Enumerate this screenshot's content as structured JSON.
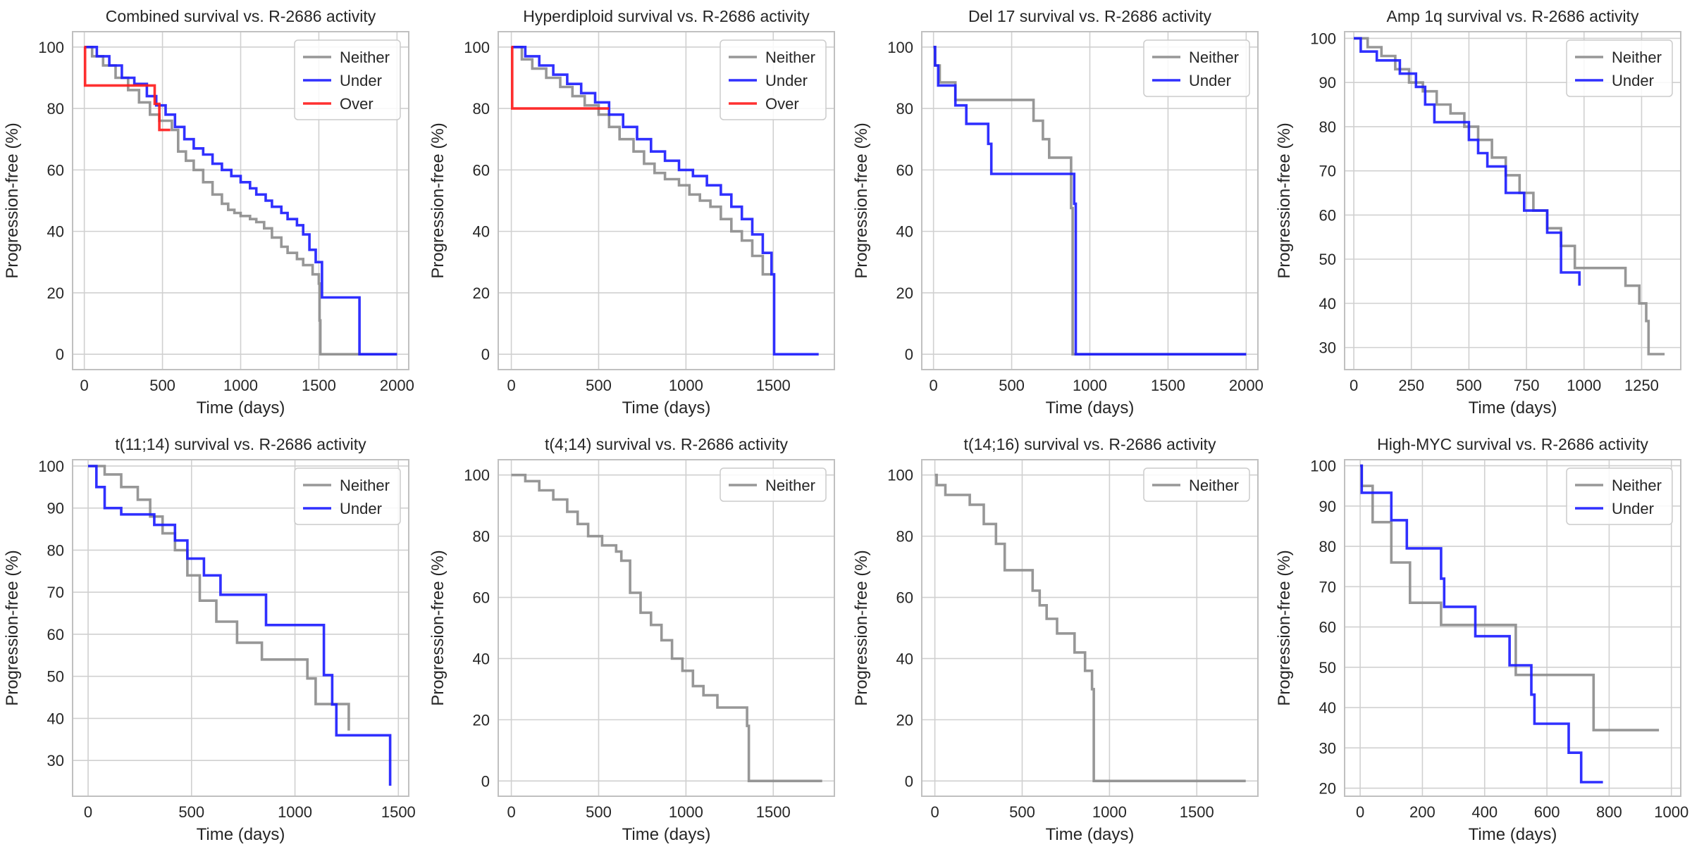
{
  "figure": {
    "background": "#ffffff"
  },
  "colors": {
    "Neither": "#8c8c8c",
    "Under": "#1a1aff",
    "Over": "#ff1a1a",
    "grid": "#d0d0d0",
    "spine": "#c0c0c0"
  },
  "chart_data": [
    {
      "type": "line",
      "title": "Combined survival vs. R-2686 activity",
      "xlabel": "Time (days)",
      "ylabel": "Progression-free (%)",
      "xlim": [
        -75,
        2075
      ],
      "ylim": [
        -5,
        105
      ],
      "xticks": [
        0,
        500,
        1000,
        1500,
        2000
      ],
      "yticks": [
        0,
        20,
        40,
        60,
        80,
        100
      ],
      "legend": [
        "Neither",
        "Under",
        "Over"
      ],
      "series": [
        {
          "name": "Neither",
          "x": [
            0,
            50,
            120,
            200,
            280,
            350,
            420,
            480,
            560,
            600,
            650,
            700,
            760,
            820,
            880,
            920,
            960,
            1000,
            1060,
            1100,
            1150,
            1200,
            1260,
            1300,
            1360,
            1400,
            1460,
            1500,
            1505,
            1510,
            2000
          ],
          "y": [
            100,
            97,
            94,
            90,
            86,
            82,
            78,
            76,
            73,
            66,
            63,
            60,
            56,
            52,
            49,
            47,
            46,
            45,
            44,
            43,
            41,
            38,
            35,
            33,
            31,
            29,
            26,
            23,
            11,
            0,
            0
          ]
        },
        {
          "name": "Under",
          "x": [
            0,
            80,
            160,
            240,
            320,
            400,
            460,
            520,
            580,
            640,
            700,
            760,
            820,
            880,
            940,
            1000,
            1060,
            1100,
            1160,
            1200,
            1260,
            1300,
            1360,
            1400,
            1440,
            1480,
            1520,
            1760,
            2000
          ],
          "y": [
            100,
            97,
            94,
            90,
            88,
            84,
            81,
            78,
            74,
            70,
            67,
            65,
            62,
            60,
            58,
            56,
            54,
            52,
            50,
            48,
            46,
            44,
            42,
            39,
            34,
            30,
            18.5,
            0,
            0
          ]
        },
        {
          "name": "Over",
          "x": [
            0,
            5,
            440,
            450,
            480,
            550
          ],
          "y": [
            100,
            87.5,
            87.5,
            81.5,
            73,
            73
          ]
        }
      ]
    },
    {
      "type": "line",
      "title": "Hyperdiploid survival vs. R-2686 activity",
      "xlabel": "Time (days)",
      "ylabel": "Progression-free (%)",
      "xlim": [
        -75,
        1850
      ],
      "ylim": [
        -5,
        105
      ],
      "xticks": [
        0,
        500,
        1000,
        1500
      ],
      "yticks": [
        0,
        20,
        40,
        60,
        80,
        100
      ],
      "legend": [
        "Neither",
        "Under",
        "Over"
      ],
      "series": [
        {
          "name": "Neither",
          "x": [
            0,
            60,
            120,
            200,
            280,
            350,
            420,
            500,
            560,
            620,
            700,
            760,
            820,
            880,
            960,
            1020,
            1080,
            1140,
            1200,
            1260,
            1320,
            1380,
            1440,
            1490
          ],
          "y": [
            100,
            96,
            93,
            90,
            87,
            84,
            81,
            78,
            74,
            70,
            66,
            62,
            59,
            57,
            55,
            52,
            50,
            48,
            44,
            40,
            37,
            32,
            26,
            26
          ]
        },
        {
          "name": "Under",
          "x": [
            0,
            80,
            160,
            240,
            320,
            400,
            480,
            560,
            640,
            720,
            800,
            880,
            960,
            1040,
            1120,
            1200,
            1260,
            1320,
            1380,
            1440,
            1490,
            1505,
            1760
          ],
          "y": [
            100,
            97,
            94,
            91,
            88,
            85,
            82,
            78,
            74,
            70,
            66,
            63,
            60,
            58,
            55,
            52,
            48,
            44,
            39,
            33,
            26,
            0,
            0
          ]
        },
        {
          "name": "Over",
          "x": [
            0,
            5,
            560
          ],
          "y": [
            100,
            80,
            80
          ]
        }
      ]
    },
    {
      "type": "line",
      "title": "Del 17 survival vs. R-2686 activity",
      "xlabel": "Time (days)",
      "ylabel": "Progression-free (%)",
      "xlim": [
        -75,
        2075
      ],
      "ylim": [
        -5,
        105
      ],
      "xticks": [
        0,
        500,
        1000,
        1500,
        2000
      ],
      "yticks": [
        0,
        20,
        40,
        60,
        80,
        100
      ],
      "legend": [
        "Neither",
        "Under"
      ],
      "series": [
        {
          "name": "Neither",
          "x": [
            0,
            10,
            40,
            140,
            580,
            640,
            700,
            740,
            880,
            890,
            2000
          ],
          "y": [
            100,
            94,
            88.5,
            82.8,
            82.8,
            76,
            70,
            64,
            47.6,
            0,
            0
          ]
        },
        {
          "name": "Under",
          "x": [
            0,
            10,
            30,
            140,
            210,
            350,
            370,
            860,
            900,
            910,
            2000
          ],
          "y": [
            100,
            94,
            87.5,
            81,
            75,
            68.5,
            58.7,
            58.7,
            49,
            0,
            0
          ]
        }
      ]
    },
    {
      "type": "line",
      "title": "Amp 1q survival vs. R-2686 activity",
      "xlabel": "Time (days)",
      "ylabel": "Progression-free (%)",
      "xlim": [
        -40,
        1420
      ],
      "ylim": [
        25,
        101.5
      ],
      "xticks": [
        0,
        250,
        500,
        750,
        1000,
        1250
      ],
      "yticks": [
        30,
        40,
        50,
        60,
        70,
        80,
        90,
        100
      ],
      "legend": [
        "Neither",
        "Under"
      ],
      "series": [
        {
          "name": "Neither",
          "x": [
            0,
            60,
            120,
            180,
            240,
            300,
            360,
            420,
            480,
            540,
            600,
            660,
            720,
            780,
            840,
            900,
            960,
            1180,
            1240,
            1270,
            1280,
            1350
          ],
          "y": [
            100,
            98,
            96,
            93,
            90,
            88,
            85,
            83,
            80,
            77,
            73,
            69,
            65,
            61,
            57,
            53,
            48,
            44,
            40,
            36,
            28.5,
            28.5
          ]
        },
        {
          "name": "Under",
          "x": [
            0,
            30,
            100,
            200,
            270,
            310,
            350,
            500,
            540,
            580,
            660,
            740,
            840,
            900,
            980
          ],
          "y": [
            100,
            97,
            95,
            92,
            89,
            85,
            81,
            77,
            74,
            71,
            65,
            61,
            56,
            47,
            44
          ]
        }
      ]
    },
    {
      "type": "line",
      "title": "t(11;14) survival vs. R-2686 activity",
      "xlabel": "Time (days)",
      "ylabel": "Progression-free (%)",
      "xlim": [
        -75,
        1550
      ],
      "ylim": [
        21.5,
        101.5
      ],
      "xticks": [
        0,
        500,
        1000,
        1500
      ],
      "yticks": [
        30,
        40,
        50,
        60,
        70,
        80,
        90,
        100
      ],
      "legend": [
        "Neither",
        "Under"
      ],
      "series": [
        {
          "name": "Neither",
          "x": [
            0,
            80,
            160,
            240,
            300,
            360,
            420,
            480,
            540,
            620,
            720,
            840,
            1060,
            1100,
            1260
          ],
          "y": [
            100,
            98,
            95,
            92,
            88,
            84,
            80,
            74,
            68,
            63,
            58,
            54,
            49.5,
            43.4,
            37.1
          ]
        },
        {
          "name": "Under",
          "x": [
            0,
            40,
            80,
            160,
            320,
            420,
            480,
            560,
            640,
            860,
            1140,
            1180,
            1200,
            1460
          ],
          "y": [
            100,
            95,
            90,
            88.5,
            86,
            82.3,
            78,
            74,
            69.4,
            62.2,
            50.3,
            43.3,
            36,
            24
          ]
        }
      ]
    },
    {
      "type": "line",
      "title": "t(4;14) survival vs. R-2686 activity",
      "xlabel": "Time (days)",
      "ylabel": "Progression-free (%)",
      "xlim": [
        -75,
        1850
      ],
      "ylim": [
        -5,
        105
      ],
      "xticks": [
        0,
        500,
        1000,
        1500
      ],
      "yticks": [
        0,
        20,
        40,
        60,
        80,
        100
      ],
      "legend": [
        "Neither"
      ],
      "series": [
        {
          "name": "Neither",
          "x": [
            0,
            80,
            160,
            240,
            320,
            380,
            440,
            520,
            600,
            630,
            680,
            740,
            800,
            860,
            920,
            980,
            1040,
            1100,
            1180,
            1350,
            1360,
            1780
          ],
          "y": [
            100,
            98,
            95,
            92,
            88,
            84,
            80,
            77,
            75,
            72,
            61.5,
            55,
            51,
            46,
            40,
            36,
            31,
            28,
            24,
            18,
            0,
            0
          ]
        }
      ]
    },
    {
      "type": "line",
      "title": "t(14;16) survival vs. R-2686 activity",
      "xlabel": "Time (days)",
      "ylabel": "Progression-free (%)",
      "xlim": [
        -75,
        1850
      ],
      "ylim": [
        -5,
        105
      ],
      "xticks": [
        0,
        500,
        1000,
        1500
      ],
      "yticks": [
        0,
        20,
        40,
        60,
        80,
        100
      ],
      "legend": [
        "Neither"
      ],
      "series": [
        {
          "name": "Neither",
          "x": [
            0,
            10,
            60,
            200,
            280,
            350,
            400,
            560,
            600,
            640,
            700,
            800,
            860,
            900,
            910,
            1780
          ],
          "y": [
            100,
            96.7,
            93.5,
            90.3,
            84,
            77.5,
            68.9,
            62.2,
            57.4,
            53,
            48.2,
            42,
            36,
            30,
            0,
            0
          ]
        }
      ]
    },
    {
      "type": "line",
      "title": "High-MYC survival vs. R-2686 activity",
      "xlabel": "Time (days)",
      "ylabel": "Progression-free (%)",
      "xlim": [
        -50,
        1030
      ],
      "ylim": [
        18,
        101.5
      ],
      "xticks": [
        0,
        200,
        400,
        600,
        800,
        1000
      ],
      "yticks": [
        20,
        30,
        40,
        50,
        60,
        70,
        80,
        90,
        100
      ],
      "legend": [
        "Neither",
        "Under"
      ],
      "series": [
        {
          "name": "Neither",
          "x": [
            0,
            5,
            40,
            100,
            160,
            260,
            470,
            500,
            730,
            750,
            960
          ],
          "y": [
            100,
            95,
            86,
            76,
            66,
            60.5,
            60.5,
            48.1,
            48.1,
            34.4,
            34.4
          ]
        },
        {
          "name": "Under",
          "x": [
            0,
            5,
            100,
            150,
            260,
            270,
            370,
            480,
            550,
            560,
            670,
            710,
            780
          ],
          "y": [
            100,
            93.3,
            86.5,
            79.5,
            72,
            65,
            57.7,
            50.5,
            43.2,
            36,
            28.8,
            21.5,
            21.5
          ]
        }
      ]
    }
  ]
}
